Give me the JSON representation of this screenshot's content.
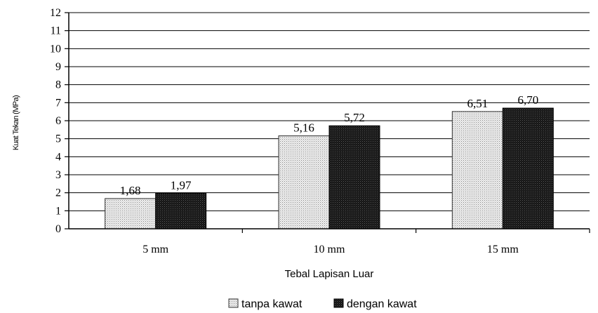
{
  "chart_data": {
    "type": "bar",
    "categories": [
      "5 mm",
      "10 mm",
      "15 mm"
    ],
    "series": [
      {
        "name": "tanpa kawat",
        "values": [
          1.68,
          5.16,
          6.51
        ],
        "labels": [
          "1,68",
          "5,16",
          "6,51"
        ],
        "color": "#e6e6e6",
        "pattern": "dotted-light"
      },
      {
        "name": "dengan kawat",
        "values": [
          1.97,
          5.72,
          6.7
        ],
        "labels": [
          "1,97",
          "5,72",
          "6,70"
        ],
        "color": "#111111",
        "pattern": "dotted-dark"
      }
    ],
    "title": "",
    "xlabel": "Tebal Lapisan Luar",
    "ylabel": "Kuat Tekan (MPa)",
    "ylim": [
      0,
      12
    ],
    "yticks": [
      "0",
      "1",
      "2",
      "3",
      "4",
      "5",
      "6",
      "7",
      "8",
      "9",
      "10",
      "11",
      "12"
    ],
    "grid": true,
    "legend_position": "bottom"
  }
}
